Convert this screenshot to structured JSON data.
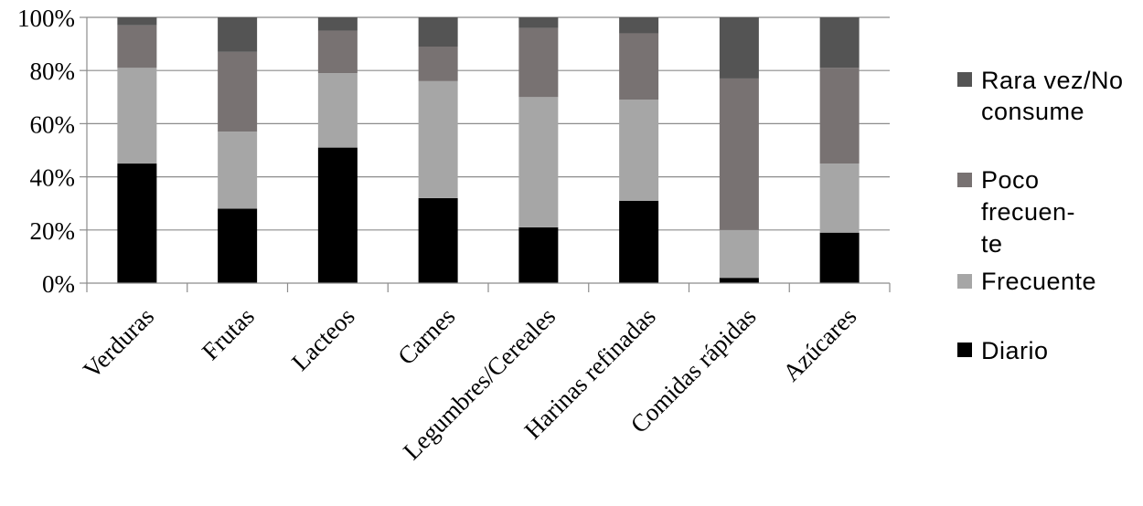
{
  "chart_data": {
    "type": "bar",
    "stacked": true,
    "percent": true,
    "categories": [
      "Verduras",
      "Frutas",
      "Lacteos",
      "Carnes",
      "Legumbres/Cereales",
      "Harinas refinadas",
      "Comidas rápidas",
      "Azúcares"
    ],
    "series": [
      {
        "name": "Diario",
        "color": "#000000",
        "values": [
          45,
          28,
          51,
          32,
          21,
          31,
          2,
          19
        ]
      },
      {
        "name": "Frecuente",
        "color": "#a6a6a6",
        "values": [
          36,
          29,
          28,
          44,
          49,
          38,
          18,
          26
        ]
      },
      {
        "name": "Poco frecuente",
        "color": "#787272",
        "values": [
          16,
          30,
          16,
          13,
          26,
          25,
          57,
          36
        ]
      },
      {
        "name": "Rara vez/No consume",
        "color": "#545454",
        "values": [
          3,
          13,
          5,
          11,
          4,
          6,
          23,
          19
        ]
      }
    ],
    "yticks": [
      "0%",
      "20%",
      "40%",
      "60%",
      "80%",
      "100%"
    ],
    "ylim": [
      0,
      100
    ],
    "grid": true,
    "legend_position": "right",
    "legend": [
      {
        "series": "Rara vez/No consume",
        "lines": [
          "Rara vez/No",
          "consume"
        ]
      },
      {
        "series": "Poco frecuente",
        "lines": [
          "Poco",
          "frecuen-",
          "te"
        ]
      },
      {
        "series": "Frecuente",
        "lines": [
          "Frecuente"
        ]
      },
      {
        "series": "Diario",
        "lines": [
          "Diario"
        ]
      }
    ]
  }
}
